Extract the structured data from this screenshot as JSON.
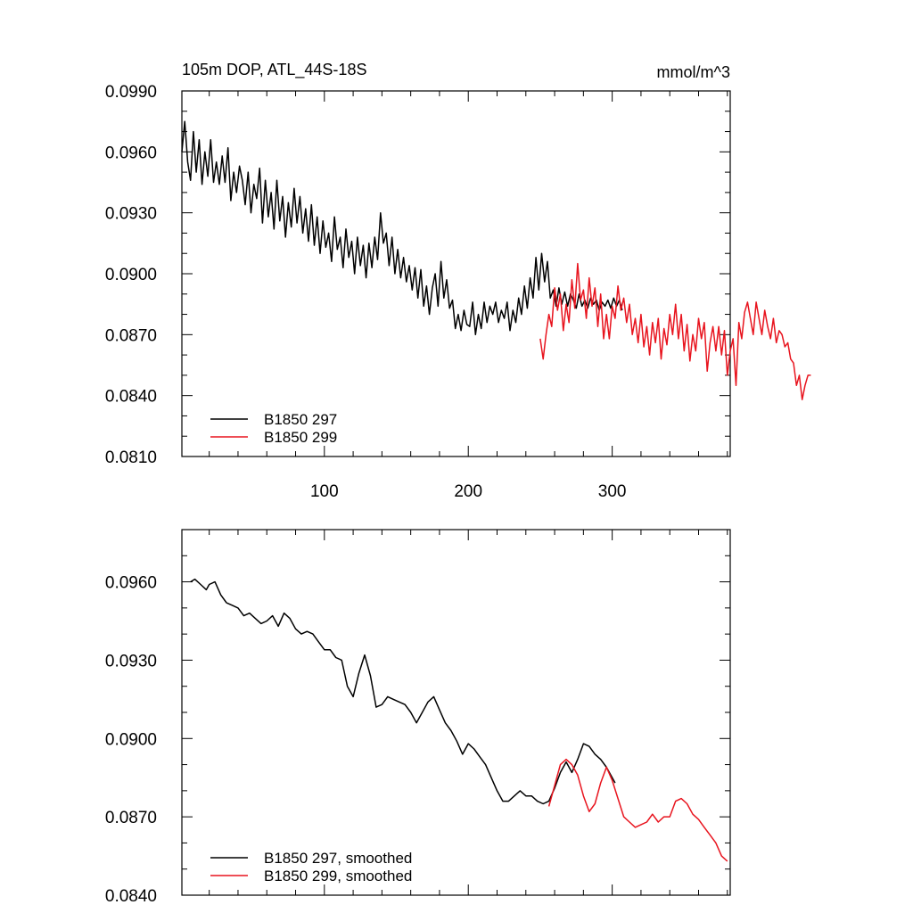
{
  "colors": {
    "run_297": "#000000",
    "run_299": "#e8141e"
  },
  "chart_data": [
    {
      "type": "line",
      "title": "105m DOP, ATL_44S-18S",
      "units": "mmol/m^3",
      "xlim": [
        1,
        382
      ],
      "ylim": [
        0.081,
        0.099
      ],
      "xticks": [
        100,
        200,
        300
      ],
      "yticks": [
        0.081,
        0.084,
        0.087,
        0.09,
        0.093,
        0.096,
        0.099
      ],
      "ytick_labels": [
        "0.0810",
        "0.0840",
        "0.0870",
        "0.0900",
        "0.0930",
        "0.0960",
        "0.0990"
      ],
      "xtick_labels": [
        "100",
        "200",
        "300"
      ],
      "legend": {
        "placement": "bottom-left",
        "entries": [
          "B1850 297",
          "B1850 299"
        ]
      },
      "series": [
        {
          "name": "B1850 297",
          "color_key": "run_297",
          "x_start": 1,
          "x_step": 2,
          "values": [
            0.096,
            0.0975,
            0.0955,
            0.0946,
            0.097,
            0.095,
            0.0966,
            0.0944,
            0.096,
            0.0948,
            0.0966,
            0.0945,
            0.0955,
            0.0944,
            0.0958,
            0.0945,
            0.0962,
            0.0936,
            0.095,
            0.094,
            0.0953,
            0.0946,
            0.0934,
            0.095,
            0.093,
            0.0944,
            0.0937,
            0.0952,
            0.0925,
            0.0946,
            0.0928,
            0.094,
            0.0922,
            0.0946,
            0.0926,
            0.0938,
            0.0918,
            0.0935,
            0.0923,
            0.0942,
            0.0925,
            0.0938,
            0.092,
            0.0932,
            0.0916,
            0.0934,
            0.0914,
            0.0928,
            0.091,
            0.0926,
            0.0913,
            0.092,
            0.0906,
            0.0928,
            0.0912,
            0.0918,
            0.0903,
            0.0922,
            0.0908,
            0.0916,
            0.09,
            0.0918,
            0.0904,
            0.0914,
            0.0898,
            0.0915,
            0.0903,
            0.0918,
            0.0907,
            0.093,
            0.0915,
            0.092,
            0.0904,
            0.0918,
            0.09,
            0.0912,
            0.0898,
            0.0908,
            0.0896,
            0.0904,
            0.0892,
            0.0903,
            0.0888,
            0.0902,
            0.0884,
            0.0894,
            0.088,
            0.0893,
            0.09,
            0.0884,
            0.0906,
            0.0888,
            0.0897,
            0.0883,
            0.0887,
            0.0873,
            0.088,
            0.0872,
            0.0882,
            0.0875,
            0.0874,
            0.0886,
            0.087,
            0.088,
            0.0873,
            0.0886,
            0.0876,
            0.0884,
            0.088,
            0.0886,
            0.0876,
            0.0882,
            0.0878,
            0.0886,
            0.0872,
            0.0882,
            0.0876,
            0.0888,
            0.088,
            0.0894,
            0.0883,
            0.0898,
            0.0888,
            0.0908,
            0.0892,
            0.091,
            0.0896,
            0.0906,
            0.0888,
            0.0892,
            0.0884,
            0.0893,
            0.0885,
            0.0891,
            0.0884,
            0.089,
            0.0887,
            0.0883,
            0.089,
            0.0884,
            0.0887,
            0.0883,
            0.0888,
            0.0885,
            0.0887,
            0.0882,
            0.0886,
            0.0884,
            0.0887,
            0.0883,
            0.0888,
            0.0884,
            0.0887,
            0.0882
          ]
        },
        {
          "name": "B1850 299",
          "color_key": "run_299",
          "x_start": 250,
          "x_step": 2,
          "values": [
            0.0868,
            0.0858,
            0.087,
            0.088,
            0.0874,
            0.0893,
            0.0882,
            0.089,
            0.0872,
            0.0885,
            0.0876,
            0.0897,
            0.0883,
            0.0905,
            0.0887,
            0.0892,
            0.0878,
            0.0898,
            0.0884,
            0.0893,
            0.0874,
            0.089,
            0.0868,
            0.088,
            0.0868,
            0.0884,
            0.0878,
            0.0894,
            0.0882,
            0.0888,
            0.0876,
            0.0885,
            0.087,
            0.0878,
            0.0866,
            0.088,
            0.0864,
            0.0874,
            0.086,
            0.0876,
            0.0866,
            0.0878,
            0.0858,
            0.0873,
            0.0865,
            0.088,
            0.087,
            0.0885,
            0.0868,
            0.088,
            0.0862,
            0.0875,
            0.0857,
            0.087,
            0.0862,
            0.0878,
            0.0868,
            0.0876,
            0.0852,
            0.0866,
            0.0874,
            0.0862,
            0.0874,
            0.086,
            0.0872,
            0.085,
            0.0862,
            0.0868,
            0.0845,
            0.0876,
            0.0868,
            0.0881,
            0.0886,
            0.0878,
            0.087,
            0.0886,
            0.0878,
            0.087,
            0.0882,
            0.0874,
            0.0868,
            0.0878,
            0.0866,
            0.0872,
            0.087,
            0.0864,
            0.0866,
            0.0858,
            0.0856,
            0.0845,
            0.085,
            0.0838,
            0.0845,
            0.085,
            0.085
          ]
        }
      ]
    },
    {
      "type": "line",
      "xlim": [
        1,
        382
      ],
      "ylim": [
        0.084,
        0.098
      ],
      "xticks": [
        100,
        200,
        300
      ],
      "yticks": [
        0.084,
        0.087,
        0.09,
        0.093,
        0.096
      ],
      "ytick_labels": [
        "0.0840",
        "0.0870",
        "0.0900",
        "0.0930",
        "0.0960"
      ],
      "legend": {
        "placement": "bottom-left",
        "entries": [
          "B1850 297, smoothed",
          "B1850 299, smoothed"
        ]
      },
      "series": [
        {
          "name": "B1850 297, smoothed",
          "color_key": "run_297",
          "x": [
            7,
            10,
            14,
            18,
            20,
            24,
            28,
            32,
            36,
            40,
            44,
            48,
            52,
            56,
            60,
            64,
            68,
            72,
            76,
            80,
            84,
            88,
            92,
            96,
            100,
            104,
            108,
            112,
            116,
            120,
            124,
            128,
            132,
            136,
            140,
            144,
            148,
            152,
            156,
            160,
            164,
            168,
            172,
            176,
            180,
            184,
            188,
            192,
            196,
            200,
            204,
            208,
            212,
            216,
            220,
            224,
            228,
            232,
            236,
            240,
            244,
            248,
            252,
            256,
            260,
            264,
            268,
            272,
            276,
            280,
            284,
            288,
            292,
            296,
            302
          ],
          "values": [
            0.096,
            0.0961,
            0.0959,
            0.0957,
            0.0959,
            0.096,
            0.0955,
            0.0952,
            0.0951,
            0.095,
            0.0947,
            0.0948,
            0.0946,
            0.0944,
            0.0945,
            0.0947,
            0.0943,
            0.0948,
            0.0946,
            0.0942,
            0.094,
            0.0941,
            0.094,
            0.0937,
            0.0934,
            0.0934,
            0.0931,
            0.093,
            0.092,
            0.0916,
            0.0925,
            0.0932,
            0.0924,
            0.0912,
            0.0913,
            0.0916,
            0.0915,
            0.0914,
            0.0913,
            0.091,
            0.0906,
            0.091,
            0.0914,
            0.0916,
            0.0911,
            0.0906,
            0.0903,
            0.0899,
            0.0894,
            0.0898,
            0.0896,
            0.0893,
            0.089,
            0.0885,
            0.088,
            0.0876,
            0.0876,
            0.0878,
            0.088,
            0.0878,
            0.0878,
            0.0876,
            0.0875,
            0.0876,
            0.0881,
            0.0887,
            0.0891,
            0.0887,
            0.0892,
            0.0898,
            0.0897,
            0.0894,
            0.0892,
            0.0889,
            0.0883
          ]
        },
        {
          "name": "B1850 299, smoothed",
          "color_key": "run_299",
          "x": [
            256,
            260,
            264,
            268,
            272,
            276,
            280,
            284,
            288,
            292,
            296,
            300,
            304,
            308,
            312,
            316,
            320,
            324,
            328,
            332,
            336,
            340,
            344,
            348,
            352,
            356,
            360,
            364,
            368,
            372,
            376,
            380
          ],
          "values": [
            0.0874,
            0.0882,
            0.089,
            0.0892,
            0.089,
            0.0886,
            0.0878,
            0.0872,
            0.0875,
            0.0883,
            0.0889,
            0.0884,
            0.0877,
            0.087,
            0.0868,
            0.0866,
            0.0867,
            0.0868,
            0.0871,
            0.0868,
            0.087,
            0.087,
            0.0876,
            0.0877,
            0.0875,
            0.0871,
            0.0869,
            0.0866,
            0.0863,
            0.086,
            0.0855,
            0.0853
          ]
        }
      ]
    }
  ]
}
